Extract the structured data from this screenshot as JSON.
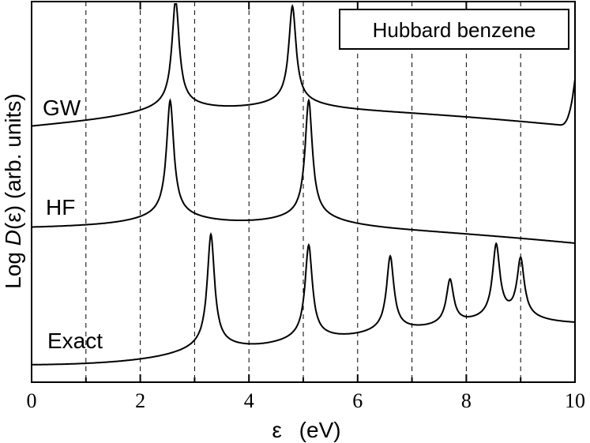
{
  "chart_data": {
    "type": "line",
    "title": "",
    "legend_box_text": "Hubbard benzene",
    "xlabel_symbol": "ε",
    "xlabel_unit": "(eV)",
    "ylabel_prefix": "Log ",
    "ylabel_italic": "D",
    "ylabel_suffix": "(ε) (arb. units)",
    "xlim": [
      0,
      10
    ],
    "x_ticks": [
      "0",
      "2",
      "4",
      "6",
      "8",
      "10"
    ],
    "x_tick_values": [
      0,
      2,
      4,
      6,
      8,
      10
    ],
    "minor_x_ticks": [
      1,
      3,
      5,
      7,
      9
    ],
    "y_ticks_shown": false,
    "grid": "vertical dashed lines at every integer eV",
    "legend_position": "top-right",
    "series": [
      {
        "name": "GW",
        "baseline_rank": 1,
        "peaks": [
          {
            "x": 2.65,
            "rel_height": 1.0
          },
          {
            "x": 4.8,
            "rel_height": 0.95
          }
        ],
        "features": [
          {
            "x": 5.25,
            "note": "small kink"
          },
          {
            "x": 7.2,
            "note": "small step"
          },
          {
            "x": 7.5,
            "note": "small step"
          },
          {
            "x": 9.9,
            "note": "upturn at edge"
          }
        ]
      },
      {
        "name": "HF",
        "baseline_rank": 2,
        "peaks": [
          {
            "x": 2.55,
            "rel_height": 1.0
          },
          {
            "x": 5.1,
            "rel_height": 1.0
          }
        ]
      },
      {
        "name": "Exact",
        "baseline_rank": 3,
        "peaks": [
          {
            "x": 3.3,
            "rel_height": 1.0
          },
          {
            "x": 5.1,
            "rel_height": 0.9
          },
          {
            "x": 6.6,
            "rel_height": 0.78
          },
          {
            "x": 7.7,
            "rel_height": 0.5
          },
          {
            "x": 8.55,
            "rel_height": 0.85
          },
          {
            "x": 9.0,
            "rel_height": 0.7
          }
        ]
      }
    ]
  }
}
